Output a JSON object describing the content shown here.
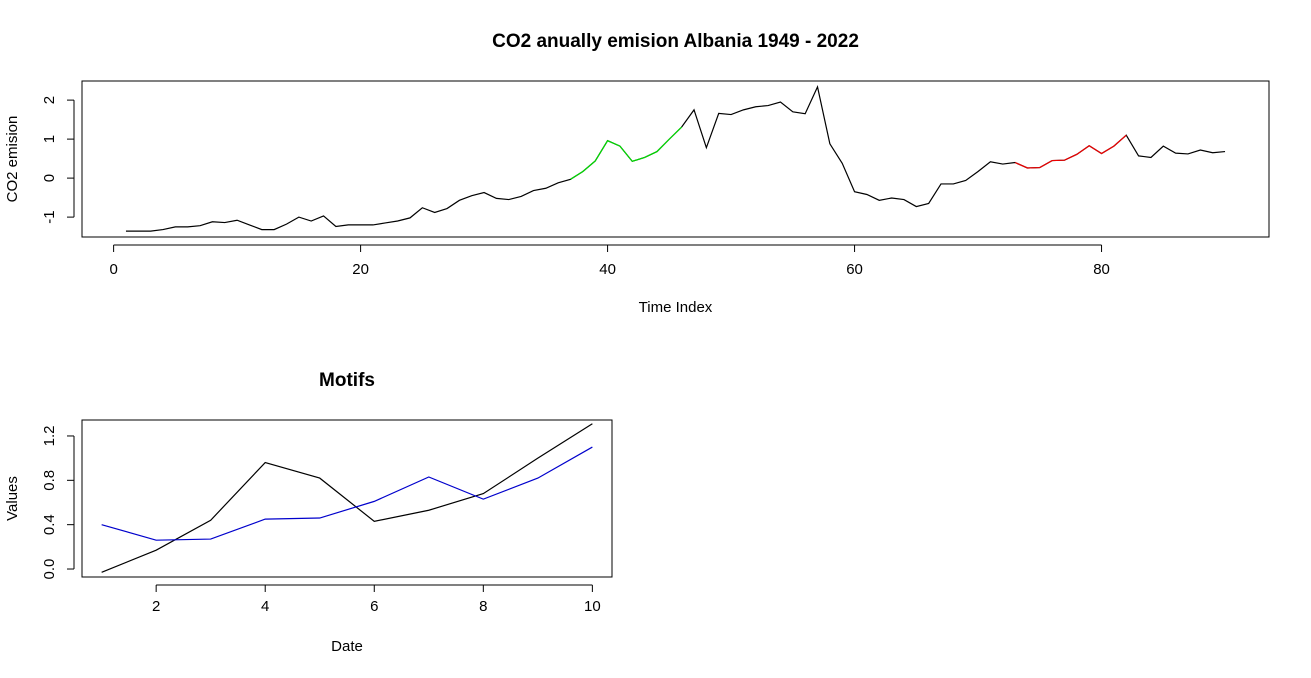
{
  "chart_data": [
    {
      "type": "line",
      "title": "CO2 anually emision Albania 1949 - 2022",
      "xlabel": "Time Index",
      "ylabel": "CO2 emision",
      "x": [
        1,
        2,
        3,
        4,
        5,
        6,
        7,
        8,
        9,
        10,
        11,
        12,
        13,
        14,
        15,
        16,
        17,
        18,
        19,
        20,
        21,
        22,
        23,
        24,
        25,
        26,
        27,
        28,
        29,
        30,
        31,
        32,
        33,
        34,
        35,
        36,
        37,
        38,
        39,
        40,
        41,
        42,
        43,
        44,
        45,
        46,
        47,
        48,
        49,
        50,
        51,
        52,
        53,
        54,
        55,
        56,
        57,
        58,
        59,
        60,
        61,
        62,
        63,
        64,
        65,
        66,
        67,
        68,
        69,
        70,
        71,
        72,
        73,
        74,
        75,
        76,
        77,
        78,
        79,
        80,
        81,
        82,
        83,
        84,
        85,
        86,
        87,
        88,
        89,
        90
      ],
      "series": [
        {
          "color": "#000000",
          "values": [
            -1.36,
            -1.36,
            -1.36,
            -1.32,
            -1.25,
            -1.25,
            -1.22,
            -1.12,
            -1.14,
            -1.08,
            -1.2,
            -1.32,
            -1.32,
            -1.18,
            -1.0,
            -1.1,
            -0.97,
            -1.24,
            -1.2,
            -1.2,
            -1.2,
            -1.15,
            -1.1,
            -1.02,
            -0.76,
            -0.88,
            -0.78,
            -0.57,
            -0.45,
            -0.37,
            -0.52,
            -0.55,
            -0.47,
            -0.32,
            -0.26,
            -0.12,
            -0.03,
            0.17,
            0.44,
            0.96,
            0.82,
            0.43,
            0.53,
            0.68,
            1.0,
            1.31,
            1.75,
            0.78,
            1.66,
            1.63,
            1.75,
            1.83,
            1.86,
            1.95,
            1.7,
            1.65,
            2.34,
            0.88,
            0.38,
            -0.35,
            -0.42,
            -0.57,
            -0.51,
            -0.55,
            -0.73,
            -0.65,
            -0.15,
            -0.15,
            -0.06,
            0.17,
            0.42,
            0.36,
            0.4,
            0.26,
            0.27,
            0.45,
            0.46,
            0.61,
            0.83,
            0.63,
            0.82,
            1.1,
            0.57,
            0.53,
            0.82,
            0.64,
            0.62,
            0.72,
            0.65,
            0.68
          ]
        },
        {
          "color": "#00dd00",
          "x": [
            37,
            38,
            39,
            40,
            41,
            42,
            43,
            44,
            45,
            46
          ],
          "values": [
            -0.03,
            0.17,
            0.44,
            0.96,
            0.82,
            0.43,
            0.53,
            0.68,
            1.0,
            1.31
          ]
        },
        {
          "color": "#ee0000",
          "x": [
            73,
            74,
            75,
            76,
            77,
            78,
            79,
            80,
            81,
            82
          ],
          "values": [
            0.4,
            0.26,
            0.27,
            0.45,
            0.46,
            0.61,
            0.83,
            0.63,
            0.82,
            1.1
          ]
        }
      ],
      "xlim": [
        -2.56,
        93.56
      ],
      "xticks": [
        0,
        20,
        40,
        60,
        80
      ],
      "ylim": [
        -1.51,
        2.49
      ],
      "yticks": [
        -1,
        0,
        1,
        2
      ]
    },
    {
      "type": "line",
      "title": "Motifs",
      "xlabel": "Date",
      "ylabel": "Values",
      "x": [
        1,
        2,
        3,
        4,
        5,
        6,
        7,
        8,
        9,
        10
      ],
      "series": [
        {
          "color": "#000000",
          "values": [
            -0.03,
            0.17,
            0.44,
            0.96,
            0.82,
            0.43,
            0.53,
            0.68,
            1.0,
            1.31
          ]
        },
        {
          "color": "#0000cc",
          "values": [
            0.4,
            0.26,
            0.27,
            0.45,
            0.46,
            0.61,
            0.83,
            0.63,
            0.82,
            1.1
          ]
        }
      ],
      "xlim": [
        0.64,
        10.36
      ],
      "xticks": [
        2,
        4,
        6,
        8,
        10
      ],
      "ylim": [
        -0.072,
        1.344
      ],
      "yticks": [
        {
          "value": 0,
          "label": "0.0"
        },
        0.4,
        0.8,
        1.2
      ]
    }
  ]
}
